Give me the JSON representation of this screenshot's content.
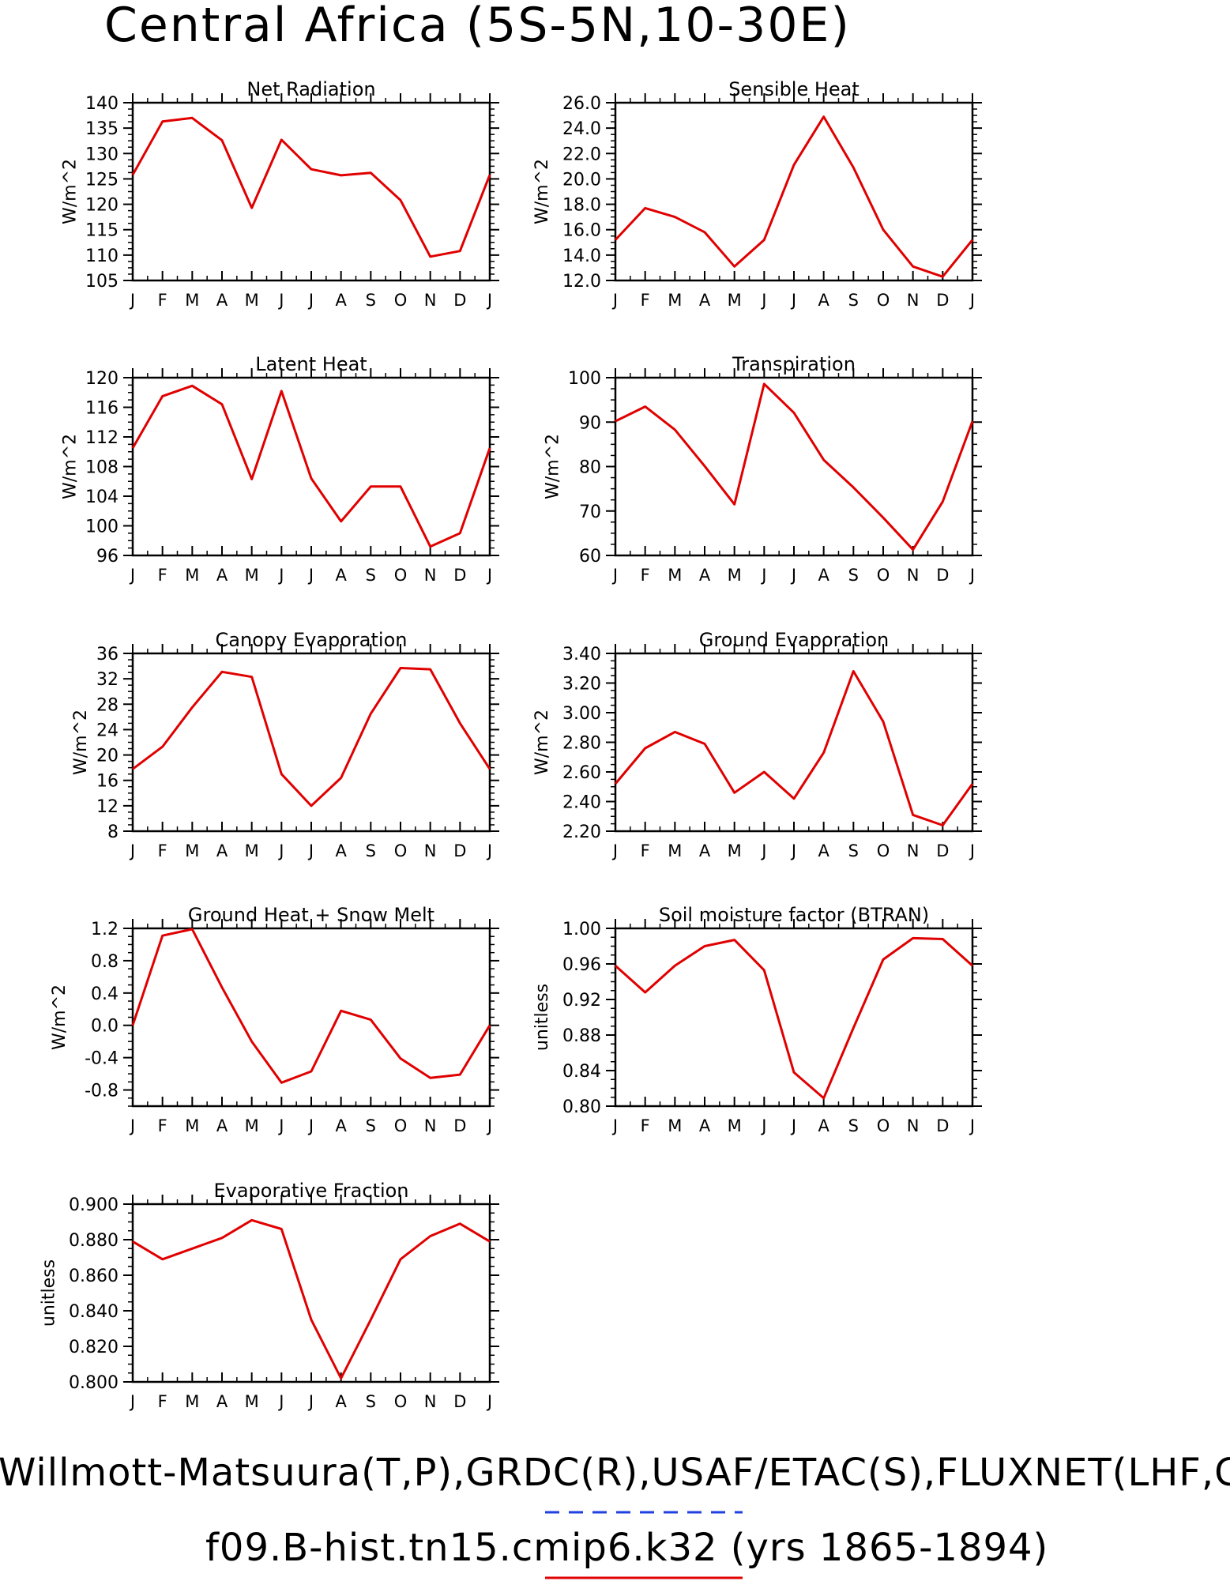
{
  "figure": {
    "title": "Central Africa (5S-5N,10-30E)",
    "footer_line1": "Willmott-Matsuura(T,P),GRDC(R),USAF/ETAC(S),FLUXNET(LHF,GPP)",
    "footer_line2": "f09.B-hist.tn15.cmip6.k32 (yrs 1865-1894)",
    "series_color": "#e00000",
    "legend_dash_color": "#2040e0"
  },
  "chart_data": [
    {
      "type": "line",
      "title": "Net Radiation",
      "ylabel": "W/m^2",
      "x": [
        "J",
        "F",
        "M",
        "A",
        "M",
        "J",
        "J",
        "A",
        "S",
        "O",
        "N",
        "D",
        "J"
      ],
      "ylim": [
        105,
        140
      ],
      "yticks": [
        "105",
        "110",
        "115",
        "120",
        "125",
        "130",
        "135",
        "140"
      ],
      "values": [
        125.8,
        136.3,
        137.0,
        132.6,
        119.3,
        132.7,
        126.9,
        125.7,
        126.2,
        120.8,
        109.7,
        110.8,
        125.8
      ]
    },
    {
      "type": "line",
      "title": "Sensible Heat",
      "ylabel": "W/m^2",
      "x": [
        "J",
        "F",
        "M",
        "A",
        "M",
        "J",
        "J",
        "A",
        "S",
        "O",
        "N",
        "D",
        "J"
      ],
      "ylim": [
        12,
        26
      ],
      "yticks": [
        "12.0",
        "14.0",
        "16.0",
        "18.0",
        "20.0",
        "22.0",
        "24.0",
        "26.0"
      ],
      "values": [
        15.2,
        17.7,
        17.0,
        15.8,
        13.1,
        15.2,
        21.1,
        24.9,
        20.9,
        16.0,
        13.1,
        12.3,
        15.2
      ]
    },
    {
      "type": "line",
      "title": "Latent Heat",
      "ylabel": "W/m^2",
      "x": [
        "J",
        "F",
        "M",
        "A",
        "M",
        "J",
        "J",
        "A",
        "S",
        "O",
        "N",
        "D",
        "J"
      ],
      "ylim": [
        96,
        120
      ],
      "yticks": [
        "96",
        "100",
        "104",
        "108",
        "112",
        "116",
        "120"
      ],
      "values": [
        110.5,
        117.5,
        118.9,
        116.4,
        106.3,
        118.2,
        106.4,
        100.6,
        105.3,
        105.3,
        97.2,
        99.0,
        110.5
      ]
    },
    {
      "type": "line",
      "title": "Transpiration",
      "ylabel": "W/m^2",
      "x": [
        "J",
        "F",
        "M",
        "A",
        "M",
        "J",
        "J",
        "A",
        "S",
        "O",
        "N",
        "D",
        "J"
      ],
      "ylim": [
        60,
        100
      ],
      "yticks": [
        "60",
        "70",
        "80",
        "90",
        "100"
      ],
      "values": [
        90.2,
        93.5,
        88.3,
        80.1,
        71.5,
        98.6,
        92.1,
        81.5,
        75.3,
        68.5,
        61.3,
        72.1,
        90.2
      ]
    },
    {
      "type": "line",
      "title": "Canopy Evaporation",
      "ylabel": "W/m^2",
      "x": [
        "J",
        "F",
        "M",
        "A",
        "M",
        "J",
        "J",
        "A",
        "S",
        "O",
        "N",
        "D",
        "J"
      ],
      "ylim": [
        8,
        36
      ],
      "yticks": [
        "8",
        "12",
        "16",
        "20",
        "24",
        "28",
        "32",
        "36"
      ],
      "values": [
        17.8,
        21.3,
        27.5,
        33.1,
        32.3,
        17.0,
        12.0,
        16.4,
        26.5,
        33.7,
        33.5,
        25.0,
        17.8
      ]
    },
    {
      "type": "line",
      "title": "Ground Evaporation",
      "ylabel": "W/m^2",
      "x": [
        "J",
        "F",
        "M",
        "A",
        "M",
        "J",
        "J",
        "A",
        "S",
        "O",
        "N",
        "D",
        "J"
      ],
      "ylim": [
        2.2,
        3.4
      ],
      "yticks": [
        "2.20",
        "2.40",
        "2.60",
        "2.80",
        "3.00",
        "3.20",
        "3.40"
      ],
      "values": [
        2.52,
        2.76,
        2.87,
        2.79,
        2.46,
        2.6,
        2.42,
        2.73,
        3.28,
        2.94,
        2.31,
        2.24,
        2.52
      ]
    },
    {
      "type": "line",
      "title": "Ground Heat + Snow Melt",
      "ylabel": "W/m^2",
      "x": [
        "J",
        "F",
        "M",
        "A",
        "M",
        "J",
        "J",
        "A",
        "S",
        "O",
        "N",
        "D",
        "J"
      ],
      "ylim": [
        -1.0,
        1.2
      ],
      "yticks": [
        "-0.8",
        "-0.4",
        "0.0",
        "0.4",
        "0.8",
        "1.2"
      ],
      "ytick_values": [
        -0.8,
        -0.4,
        0.0,
        0.4,
        0.8,
        1.2
      ],
      "values": [
        0.0,
        1.11,
        1.19,
        0.47,
        -0.2,
        -0.71,
        -0.57,
        0.18,
        0.07,
        -0.41,
        -0.65,
        -0.61,
        0.0
      ]
    },
    {
      "type": "line",
      "title": "Soil moisture factor (BTRAN)",
      "ylabel": "unitless",
      "x": [
        "J",
        "F",
        "M",
        "A",
        "M",
        "J",
        "J",
        "A",
        "S",
        "O",
        "N",
        "D",
        "J"
      ],
      "ylim": [
        0.8,
        1.0
      ],
      "yticks": [
        "0.80",
        "0.84",
        "0.88",
        "0.92",
        "0.96",
        "1.00"
      ],
      "values": [
        0.958,
        0.928,
        0.958,
        0.98,
        0.987,
        0.953,
        0.838,
        0.809,
        0.888,
        0.965,
        0.989,
        0.988,
        0.958
      ]
    },
    {
      "type": "line",
      "title": "Evaporative Fraction",
      "ylabel": "unitless",
      "x": [
        "J",
        "F",
        "M",
        "A",
        "M",
        "J",
        "J",
        "A",
        "S",
        "O",
        "N",
        "D",
        "J"
      ],
      "ylim": [
        0.8,
        0.9
      ],
      "yticks": [
        "0.800",
        "0.820",
        "0.840",
        "0.860",
        "0.880",
        "0.900"
      ],
      "values": [
        0.879,
        0.869,
        0.875,
        0.881,
        0.891,
        0.886,
        0.835,
        0.802,
        0.835,
        0.869,
        0.882,
        0.889,
        0.879
      ]
    }
  ]
}
